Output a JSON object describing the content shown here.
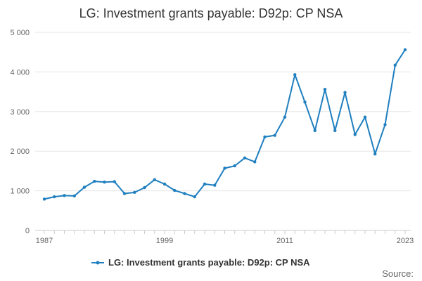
{
  "chart_data": {
    "type": "line",
    "title": "LG: Investment grants payable: D92p: CP NSA",
    "xlabel": "",
    "ylabel": "",
    "x_ticks": [
      "1987",
      "1999",
      "2011",
      "2023"
    ],
    "y_ticks": [
      "0",
      "1 000",
      "2 000",
      "3 000",
      "4 000",
      "5 000"
    ],
    "xlim": [
      1987,
      2023
    ],
    "ylim": [
      0,
      5000
    ],
    "grid": true,
    "legend_position": "bottom",
    "series": [
      {
        "name": "LG: Investment grants payable: D92p: CP NSA",
        "color": "#1f7fbf",
        "x": [
          1987,
          1988,
          1989,
          1990,
          1991,
          1992,
          1993,
          1994,
          1995,
          1996,
          1997,
          1998,
          1999,
          2000,
          2001,
          2002,
          2003,
          2004,
          2005,
          2006,
          2007,
          2008,
          2009,
          2010,
          2011,
          2012,
          2013,
          2014,
          2015,
          2016,
          2017,
          2018,
          2019,
          2020,
          2021,
          2022,
          2023
        ],
        "y": [
          790,
          850,
          880,
          870,
          1090,
          1240,
          1220,
          1230,
          930,
          960,
          1080,
          1280,
          1170,
          1010,
          930,
          850,
          1170,
          1140,
          1570,
          1630,
          1830,
          1730,
          2360,
          2400,
          2860,
          3930,
          3240,
          2520,
          3560,
          2520,
          3480,
          2420,
          2860,
          1930,
          2670,
          4170,
          4560
        ]
      }
    ],
    "source_label": "Source:"
  }
}
